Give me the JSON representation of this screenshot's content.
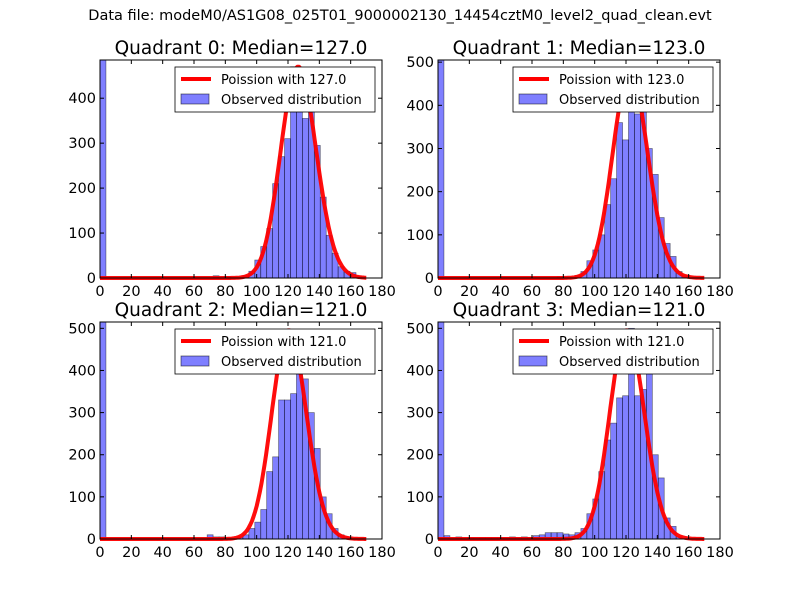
{
  "suptitle": "Data file: modeM0/AS1G08_025T01_9000002130_14454cztM0_level2_quad_clean.evt",
  "colors": {
    "bar": "#0000ff",
    "curve": "#ff0000"
  },
  "chart_data": [
    {
      "type": "bar",
      "title": "Quadrant 0: Median=127.0",
      "median": 127.0,
      "legend": [
        "Poission with 127.0",
        "Observed distribution"
      ],
      "legend_position": "top-right",
      "xlim": [
        0,
        180
      ],
      "ylim": [
        0,
        485
      ],
      "xticks": [
        "0",
        "20",
        "40",
        "60",
        "80",
        "100",
        "120",
        "140",
        "160",
        "180"
      ],
      "yticks": [
        "0",
        "100",
        "200",
        "300",
        "400"
      ],
      "bin_width": 3.8,
      "curve_peak": 470,
      "values": [
        490,
        0,
        0,
        0,
        0,
        0,
        0,
        0,
        0,
        0,
        0,
        0,
        0,
        0,
        0,
        0,
        0,
        0,
        0,
        5,
        0,
        3,
        0,
        0,
        5,
        15,
        40,
        70,
        110,
        210,
        270,
        310,
        470,
        380,
        355,
        380,
        295,
        180,
        95,
        55,
        25,
        15,
        12,
        3,
        0
      ]
    },
    {
      "type": "bar",
      "title": "Quadrant 1: Median=123.0",
      "median": 123.0,
      "legend": [
        "Poission with 123.0",
        "Observed distribution"
      ],
      "legend_position": "top-right",
      "xlim": [
        0,
        180
      ],
      "ylim": [
        0,
        505
      ],
      "xticks": [
        "0",
        "20",
        "40",
        "60",
        "80",
        "100",
        "120",
        "140",
        "160",
        "180"
      ],
      "yticks": [
        "0",
        "100",
        "200",
        "300",
        "400",
        "500"
      ],
      "bin_width": 3.8,
      "curve_peak": 480,
      "values": [
        505,
        0,
        0,
        0,
        0,
        0,
        0,
        0,
        0,
        0,
        0,
        0,
        0,
        0,
        0,
        0,
        0,
        0,
        0,
        0,
        3,
        0,
        0,
        5,
        15,
        40,
        65,
        100,
        170,
        230,
        360,
        320,
        480,
        380,
        385,
        300,
        240,
        140,
        80,
        50,
        15,
        5,
        0,
        0,
        0
      ]
    },
    {
      "type": "bar",
      "title": "Quadrant 2: Median=121.0",
      "median": 121.0,
      "legend": [
        "Poission with 121.0",
        "Observed distribution"
      ],
      "legend_position": "top-right",
      "xlim": [
        0,
        180
      ],
      "ylim": [
        0,
        515
      ],
      "xticks": [
        "0",
        "20",
        "40",
        "60",
        "80",
        "100",
        "120",
        "140",
        "160",
        "180"
      ],
      "yticks": [
        "0",
        "100",
        "200",
        "300",
        "400",
        "500"
      ],
      "bin_width": 3.8,
      "curve_peak": 495,
      "values": [
        515,
        0,
        0,
        0,
        0,
        0,
        0,
        0,
        0,
        0,
        0,
        0,
        0,
        0,
        0,
        0,
        0,
        0,
        10,
        5,
        5,
        0,
        0,
        5,
        10,
        25,
        40,
        70,
        160,
        195,
        330,
        330,
        345,
        495,
        380,
        300,
        215,
        100,
        60,
        25,
        10,
        5,
        0,
        0,
        0
      ]
    },
    {
      "type": "bar",
      "title": "Quadrant 3: Median=121.0",
      "median": 121.0,
      "legend": [
        "Poission with 121.0",
        "Observed distribution"
      ],
      "legend_position": "top-right",
      "xlim": [
        0,
        180
      ],
      "ylim": [
        0,
        515
      ],
      "xticks": [
        "0",
        "20",
        "40",
        "60",
        "80",
        "100",
        "120",
        "140",
        "160",
        "180"
      ],
      "yticks": [
        "0",
        "100",
        "200",
        "300",
        "400",
        "500"
      ],
      "bin_width": 3.8,
      "curve_peak": 495,
      "values": [
        515,
        8,
        0,
        5,
        0,
        3,
        3,
        3,
        3,
        3,
        3,
        3,
        5,
        3,
        5,
        3,
        8,
        10,
        15,
        15,
        15,
        12,
        10,
        15,
        25,
        60,
        95,
        160,
        235,
        275,
        335,
        340,
        500,
        340,
        355,
        425,
        200,
        145,
        50,
        30,
        5,
        0,
        0,
        0,
        0
      ]
    }
  ]
}
